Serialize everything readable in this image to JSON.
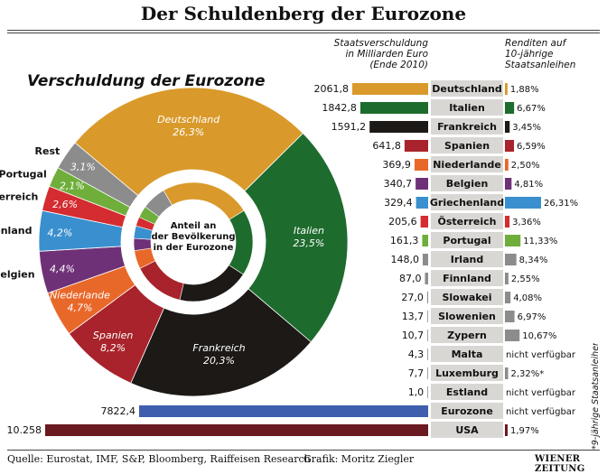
{
  "title": "Der Schuldenberg der Eurozone",
  "pie_title": "Verschuldung der Eurozone",
  "col_debt_header": [
    "Staatsverschuldung",
    "in Milliarden Euro",
    "(Ende 2010)"
  ],
  "col_yield_header": [
    "Renditen auf",
    "10-jährige",
    "Staatsanleihen"
  ],
  "footer_source": "Quelle: Eurostat, IMF, S&P, Bloomberg, Raiffeisen Research",
  "footer_graphic": "Grafik: Moritz Ziegler",
  "brand": "WIENER ZEITUNG",
  "footnote": "*9-jährige Staatsanleihen",
  "chart_data": [
    {
      "type": "pie",
      "title": "Verschuldung der Eurozone",
      "center_label": [
        "Anteil an",
        "der Bevölkerung",
        "in der Eurozone"
      ],
      "slices": [
        {
          "label": "Deutschland",
          "value_label": "26,3%",
          "value": 26.3,
          "color": "#d99a2b"
        },
        {
          "label": "Italien",
          "value_label": "23,5%",
          "value": 23.5,
          "color": "#1e6b2e"
        },
        {
          "label": "Frankreich",
          "value_label": "20,3%",
          "value": 20.3,
          "color": "#1c1916"
        },
        {
          "label": "Spanien",
          "value_label": "8,2%",
          "value": 8.2,
          "color": "#a8232b"
        },
        {
          "label": "Niederlande",
          "value_label": "4,7%",
          "value": 4.7,
          "color": "#e8682a"
        },
        {
          "label": "Belgien",
          "value_label": "4,4%",
          "value": 4.4,
          "color": "#6e3177"
        },
        {
          "label": "Griechenland",
          "value_label": "4,2%",
          "value": 4.2,
          "color": "#3a8fcf"
        },
        {
          "label": "Österreich",
          "value_label": "2,6%",
          "value": 2.6,
          "color": "#d42c30"
        },
        {
          "label": "Portugal",
          "value_label": "2,1%",
          "value": 2.1,
          "color": "#6fae3a"
        },
        {
          "label": "Rest",
          "value_label": "3,1%",
          "value": 3.1,
          "color": "#8c8c8c"
        }
      ],
      "inner_ring": [
        {
          "country": "Deutschland",
          "value": 24.5,
          "color": "#d99a2b"
        },
        {
          "country": "Italien",
          "value": 18.0,
          "color": "#1e6b2e"
        },
        {
          "country": "Frankreich",
          "value": 19.5,
          "color": "#1c1916"
        },
        {
          "country": "Spanien",
          "value": 14.0,
          "color": "#a8232b"
        },
        {
          "country": "Niederlande",
          "value": 5.0,
          "color": "#e8682a"
        },
        {
          "country": "Belgien",
          "value": 3.3,
          "color": "#6e3177"
        },
        {
          "country": "Griechenland",
          "value": 3.4,
          "color": "#3a8fcf"
        },
        {
          "country": "Österreich",
          "value": 2.5,
          "color": "#d42c30"
        },
        {
          "country": "Portugal",
          "value": 3.2,
          "color": "#6fae3a"
        },
        {
          "country": "Rest",
          "value": 6.6,
          "color": "#8c8c8c"
        }
      ]
    },
    {
      "type": "table",
      "title": "Staatsverschuldung in Milliarden Euro (Ende 2010) / Renditen auf 10-jährige Staatsanleihen",
      "rows": [
        {
          "country": "Deutschland",
          "debt_label": "2061,8",
          "debt": 2061.8,
          "yield_label": "1,88%",
          "yield": 1.88,
          "color": "#d99a2b"
        },
        {
          "country": "Italien",
          "debt_label": "1842,8",
          "debt": 1842.8,
          "yield_label": "6,67%",
          "yield": 6.67,
          "color": "#1e6b2e"
        },
        {
          "country": "Frankreich",
          "debt_label": "1591,2",
          "debt": 1591.2,
          "yield_label": "3,45%",
          "yield": 3.45,
          "color": "#1c1916"
        },
        {
          "country": "Spanien",
          "debt_label": "641,8",
          "debt": 641.8,
          "yield_label": "6,59%",
          "yield": 6.59,
          "color": "#a8232b"
        },
        {
          "country": "Niederlande",
          "debt_label": "369,9",
          "debt": 369.9,
          "yield_label": "2,50%",
          "yield": 2.5,
          "color": "#e8682a"
        },
        {
          "country": "Belgien",
          "debt_label": "340,7",
          "debt": 340.7,
          "yield_label": "4,81%",
          "yield": 4.81,
          "color": "#6e3177"
        },
        {
          "country": "Griechenland",
          "debt_label": "329,4",
          "debt": 329.4,
          "yield_label": "26,31%",
          "yield": 26.31,
          "color": "#3a8fcf"
        },
        {
          "country": "Österreich",
          "debt_label": "205,6",
          "debt": 205.6,
          "yield_label": "3,36%",
          "yield": 3.36,
          "color": "#d42c30"
        },
        {
          "country": "Portugal",
          "debt_label": "161,3",
          "debt": 161.3,
          "yield_label": "11,33%",
          "yield": 11.33,
          "color": "#6fae3a"
        },
        {
          "country": "Irland",
          "debt_label": "148,0",
          "debt": 148.0,
          "yield_label": "8,34%",
          "yield": 8.34,
          "color": "#8c8c8c"
        },
        {
          "country": "Finnland",
          "debt_label": "87,0",
          "debt": 87.0,
          "yield_label": "2,55%",
          "yield": 2.55,
          "color": "#8c8c8c"
        },
        {
          "country": "Slowakei",
          "debt_label": "27,0",
          "debt": 27.0,
          "yield_label": "4,08%",
          "yield": 4.08,
          "color": "#8c8c8c"
        },
        {
          "country": "Slowenien",
          "debt_label": "13,7",
          "debt": 13.7,
          "yield_label": "6,97%",
          "yield": 6.97,
          "color": "#8c8c8c"
        },
        {
          "country": "Zypern",
          "debt_label": "10,7",
          "debt": 10.7,
          "yield_label": "10,67%",
          "yield": 10.67,
          "color": "#8c8c8c"
        },
        {
          "country": "Malta",
          "debt_label": "4,3",
          "debt": 4.3,
          "yield_label": "nicht verfügbar",
          "yield": null,
          "color": "#8c8c8c"
        },
        {
          "country": "Luxemburg",
          "debt_label": "7,7",
          "debt": 7.7,
          "yield_label": "2,32%*",
          "yield": 2.32,
          "color": "#8c8c8c"
        },
        {
          "country": "Estland",
          "debt_label": "1,0",
          "debt": 1.0,
          "yield_label": "nicht verfügbar",
          "yield": null,
          "color": "#8c8c8c"
        },
        {
          "country": "Eurozone",
          "debt_label": "7822,4",
          "debt": 7822.4,
          "yield_label": "nicht verfügbar",
          "yield": null,
          "color": "#3f5fae"
        },
        {
          "country": "USA",
          "debt_label": "10.258",
          "debt": 10258,
          "yield_label": "1,97%",
          "yield": 1.97,
          "color": "#6b1a1f"
        }
      ]
    }
  ]
}
